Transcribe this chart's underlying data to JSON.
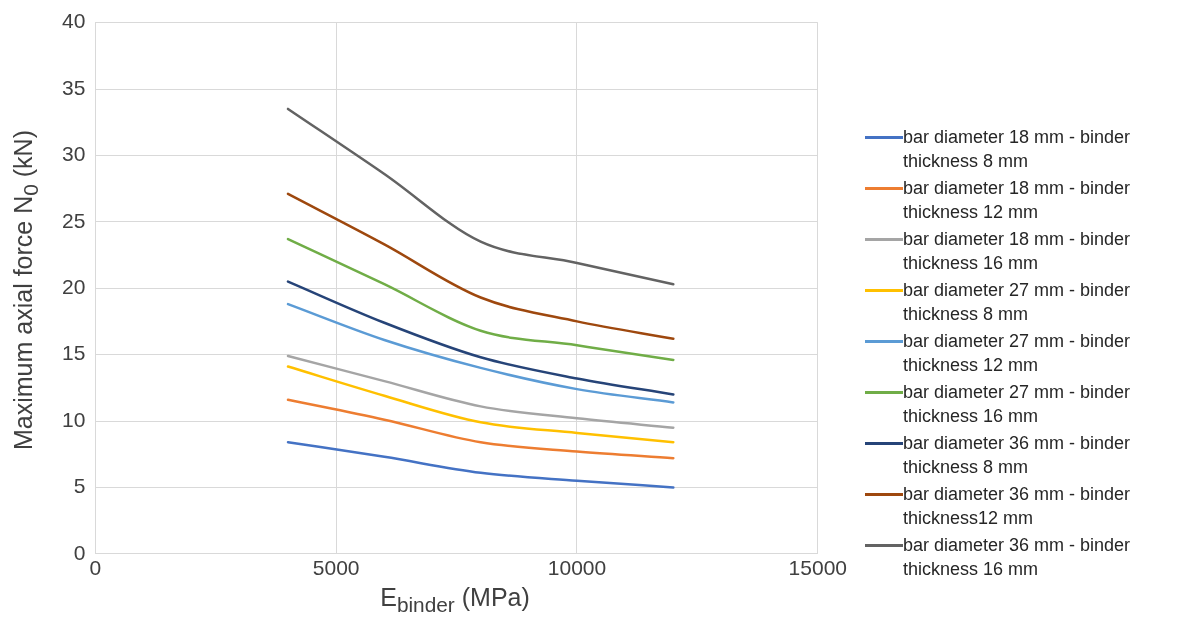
{
  "chart_data": {
    "type": "line",
    "xlabel": "E$_{binder}$ (MPa)",
    "ylabel": "Maximum axial force N$_{0}$ (kN)",
    "x": [
      4000,
      6000,
      8000,
      10000,
      12000
    ],
    "xlim": [
      0,
      15000
    ],
    "xticks": [
      0,
      5000,
      10000,
      15000
    ],
    "ylim": [
      0,
      40
    ],
    "yticks": [
      0,
      5,
      10,
      15,
      20,
      25,
      30,
      35,
      40
    ],
    "grid": true,
    "legend": "right",
    "marker": "none",
    "line_style": "solid",
    "series": [
      {
        "name": "bar diameter 18 mm - binder thickness 8 mm",
        "color": "#4472c4",
        "values": [
          8.4,
          7.3,
          6.1,
          5.5,
          5.0
        ]
      },
      {
        "name": "bar diameter 18 mm - binder thickness 12 mm",
        "color": "#ed7d31",
        "values": [
          11.6,
          10.1,
          8.4,
          7.7,
          7.2
        ]
      },
      {
        "name": "bar diameter 18 mm - binder thickness 16 mm",
        "color": "#a5a5a5",
        "values": [
          14.9,
          13.0,
          11.1,
          10.2,
          9.5
        ]
      },
      {
        "name": "bar diameter 27 mm - binder thickness 8 mm",
        "color": "#ffc000",
        "values": [
          14.1,
          11.9,
          9.9,
          9.1,
          8.4
        ]
      },
      {
        "name": "bar diameter 27 mm - binder thickness 12 mm",
        "color": "#5b9bd5",
        "values": [
          18.8,
          16.1,
          14.0,
          12.4,
          11.4
        ]
      },
      {
        "name": "bar diameter 27 mm - binder thickness 16 mm",
        "color": "#70ad47",
        "values": [
          23.7,
          20.3,
          16.8,
          15.7,
          14.6
        ]
      },
      {
        "name": "bar diameter 36 mm - binder thickness 8 mm",
        "color": "#264478",
        "values": [
          20.5,
          17.4,
          14.8,
          13.2,
          12.0
        ]
      },
      {
        "name": "bar diameter 36 mm - binder thickness12 mm",
        "color": "#9e480e",
        "values": [
          27.1,
          23.3,
          19.3,
          17.5,
          16.2
        ]
      },
      {
        "name": "bar diameter 36 mm - binder thickness 16 mm",
        "color": "#636363",
        "values": [
          33.5,
          28.6,
          23.5,
          21.9,
          20.3
        ]
      }
    ]
  }
}
